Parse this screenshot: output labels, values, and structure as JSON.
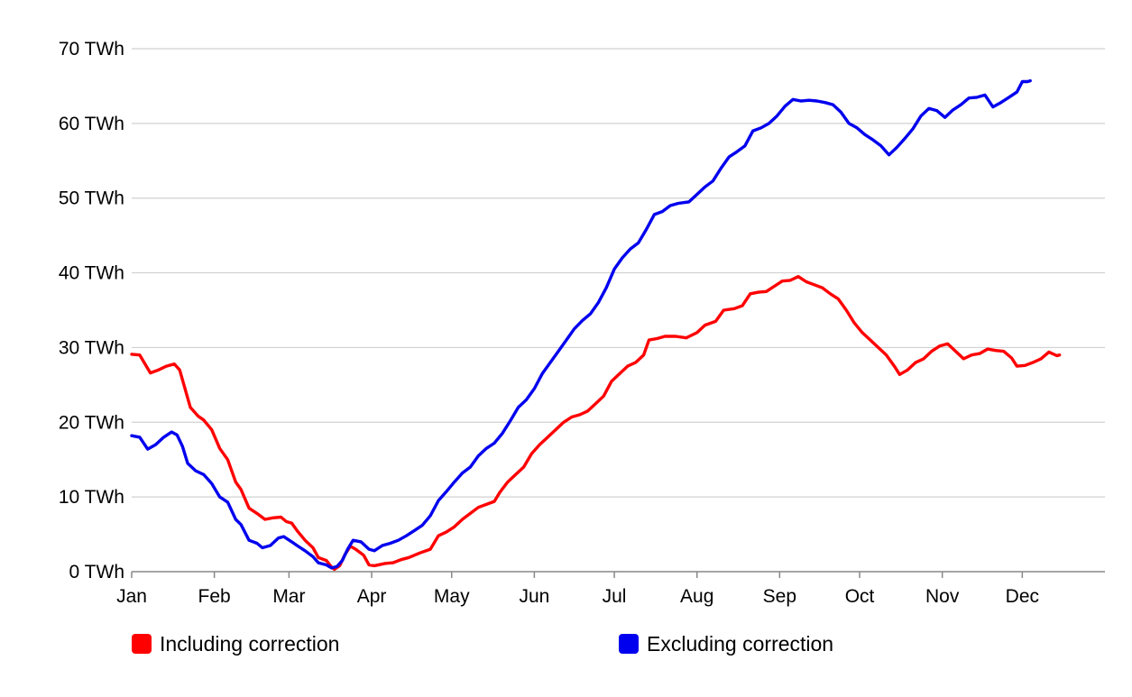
{
  "chart_data": {
    "type": "line",
    "title": "",
    "xlabel": "",
    "ylabel": "",
    "y_unit_suffix": " TWh",
    "ylim": [
      0,
      70
    ],
    "xlim": [
      0,
      365
    ],
    "grid": true,
    "legend_position": "bottom",
    "y_ticks": [
      {
        "value": 0,
        "label": "0 TWh"
      },
      {
        "value": 10,
        "label": "10 TWh"
      },
      {
        "value": 20,
        "label": "20 TWh"
      },
      {
        "value": 30,
        "label": "30 TWh"
      },
      {
        "value": 40,
        "label": "40 TWh"
      },
      {
        "value": 50,
        "label": "50 TWh"
      },
      {
        "value": 60,
        "label": "60 TWh"
      },
      {
        "value": 70,
        "label": "70 TWh"
      }
    ],
    "x_ticks": [
      {
        "day": 0,
        "label": "Jan"
      },
      {
        "day": 31,
        "label": "Feb"
      },
      {
        "day": 59,
        "label": "Mar"
      },
      {
        "day": 90,
        "label": "Apr"
      },
      {
        "day": 120,
        "label": "May"
      },
      {
        "day": 151,
        "label": "Jun"
      },
      {
        "day": 181,
        "label": "Jul"
      },
      {
        "day": 212,
        "label": "Aug"
      },
      {
        "day": 243,
        "label": "Sep"
      },
      {
        "day": 273,
        "label": "Oct"
      },
      {
        "day": 304,
        "label": "Nov"
      },
      {
        "day": 334,
        "label": "Dec"
      }
    ],
    "series": [
      {
        "name": "Including correction",
        "color": "#ff0000",
        "points": [
          [
            0,
            29.1
          ],
          [
            3,
            29.0
          ],
          [
            7,
            26.6
          ],
          [
            10,
            27.0
          ],
          [
            13,
            27.5
          ],
          [
            16,
            27.8
          ],
          [
            18,
            27.0
          ],
          [
            20,
            24.5
          ],
          [
            22,
            22.0
          ],
          [
            25,
            20.8
          ],
          [
            27,
            20.3
          ],
          [
            30,
            19.0
          ],
          [
            33,
            16.5
          ],
          [
            36,
            15.0
          ],
          [
            39,
            12.0
          ],
          [
            41,
            11.0
          ],
          [
            44,
            8.5
          ],
          [
            47,
            7.8
          ],
          [
            50,
            7.0
          ],
          [
            53,
            7.2
          ],
          [
            56,
            7.3
          ],
          [
            58,
            6.7
          ],
          [
            60,
            6.5
          ],
          [
            62,
            5.5
          ],
          [
            65,
            4.2
          ],
          [
            68,
            3.2
          ],
          [
            70,
            1.9
          ],
          [
            73,
            1.5
          ],
          [
            75,
            0.6
          ],
          [
            76,
            0.3
          ],
          [
            78,
            0.8
          ],
          [
            80,
            2.3
          ],
          [
            82,
            3.4
          ],
          [
            84,
            3.0
          ],
          [
            87,
            2.2
          ],
          [
            89,
            0.9
          ],
          [
            91,
            0.8
          ],
          [
            95,
            1.1
          ],
          [
            98,
            1.2
          ],
          [
            101,
            1.6
          ],
          [
            104,
            1.9
          ],
          [
            108,
            2.5
          ],
          [
            112,
            3.0
          ],
          [
            115,
            4.8
          ],
          [
            118,
            5.3
          ],
          [
            121,
            6.0
          ],
          [
            124,
            7.0
          ],
          [
            127,
            7.8
          ],
          [
            130,
            8.6
          ],
          [
            133,
            9.0
          ],
          [
            136,
            9.4
          ],
          [
            138,
            10.6
          ],
          [
            141,
            12.0
          ],
          [
            144,
            13.0
          ],
          [
            147,
            14.0
          ],
          [
            150,
            15.8
          ],
          [
            153,
            17.0
          ],
          [
            156,
            18.0
          ],
          [
            159,
            19.0
          ],
          [
            162,
            20.0
          ],
          [
            165,
            20.7
          ],
          [
            168,
            21.0
          ],
          [
            171,
            21.5
          ],
          [
            174,
            22.5
          ],
          [
            177,
            23.5
          ],
          [
            180,
            25.5
          ],
          [
            183,
            26.5
          ],
          [
            186,
            27.5
          ],
          [
            189,
            28.0
          ],
          [
            192,
            29.0
          ],
          [
            194,
            31.0
          ],
          [
            197,
            31.2
          ],
          [
            200,
            31.5
          ],
          [
            204,
            31.5
          ],
          [
            208,
            31.3
          ],
          [
            212,
            32.0
          ],
          [
            215,
            33.0
          ],
          [
            219,
            33.5
          ],
          [
            222,
            35.0
          ],
          [
            226,
            35.2
          ],
          [
            229,
            35.6
          ],
          [
            232,
            37.2
          ],
          [
            235,
            37.4
          ],
          [
            238,
            37.5
          ],
          [
            241,
            38.2
          ],
          [
            244,
            38.9
          ],
          [
            247,
            39.0
          ],
          [
            250,
            39.5
          ],
          [
            253,
            38.8
          ],
          [
            256,
            38.4
          ],
          [
            259,
            38.0
          ],
          [
            262,
            37.2
          ],
          [
            265,
            36.5
          ],
          [
            268,
            35.0
          ],
          [
            271,
            33.3
          ],
          [
            274,
            32.0
          ],
          [
            277,
            31.0
          ],
          [
            280,
            30.0
          ],
          [
            283,
            29.0
          ],
          [
            286,
            27.5
          ],
          [
            288,
            26.4
          ],
          [
            291,
            27.0
          ],
          [
            294,
            28.0
          ],
          [
            297,
            28.5
          ],
          [
            300,
            29.5
          ],
          [
            303,
            30.2
          ],
          [
            306,
            30.5
          ],
          [
            309,
            29.5
          ],
          [
            312,
            28.5
          ],
          [
            315,
            29.0
          ],
          [
            318,
            29.2
          ],
          [
            321,
            29.8
          ],
          [
            324,
            29.6
          ],
          [
            327,
            29.5
          ],
          [
            330,
            28.6
          ],
          [
            332,
            27.5
          ],
          [
            335,
            27.6
          ],
          [
            338,
            28.0
          ],
          [
            341,
            28.5
          ],
          [
            344,
            29.4
          ],
          [
            347,
            28.9
          ],
          [
            348,
            29.0
          ]
        ]
      },
      {
        "name": "Excluding correction",
        "color": "#0000ee",
        "points": [
          [
            0,
            18.2
          ],
          [
            3,
            18.0
          ],
          [
            6,
            16.4
          ],
          [
            9,
            17.0
          ],
          [
            12,
            18.0
          ],
          [
            15,
            18.7
          ],
          [
            17,
            18.3
          ],
          [
            19,
            16.8
          ],
          [
            21,
            14.5
          ],
          [
            24,
            13.5
          ],
          [
            27,
            13.0
          ],
          [
            30,
            11.8
          ],
          [
            33,
            10.0
          ],
          [
            36,
            9.3
          ],
          [
            39,
            7.0
          ],
          [
            41,
            6.3
          ],
          [
            44,
            4.2
          ],
          [
            47,
            3.8
          ],
          [
            49,
            3.2
          ],
          [
            52,
            3.5
          ],
          [
            55,
            4.5
          ],
          [
            57,
            4.7
          ],
          [
            60,
            4.0
          ],
          [
            62,
            3.5
          ],
          [
            65,
            2.8
          ],
          [
            68,
            2.0
          ],
          [
            70,
            1.2
          ],
          [
            73,
            0.9
          ],
          [
            75,
            0.5
          ],
          [
            77,
            0.7
          ],
          [
            79,
            1.5
          ],
          [
            81,
            3.0
          ],
          [
            83,
            4.2
          ],
          [
            86,
            4.0
          ],
          [
            89,
            3.0
          ],
          [
            91,
            2.8
          ],
          [
            94,
            3.5
          ],
          [
            97,
            3.8
          ],
          [
            100,
            4.2
          ],
          [
            103,
            4.8
          ],
          [
            106,
            5.5
          ],
          [
            109,
            6.2
          ],
          [
            112,
            7.5
          ],
          [
            115,
            9.5
          ],
          [
            118,
            10.7
          ],
          [
            121,
            12.0
          ],
          [
            124,
            13.2
          ],
          [
            127,
            14.0
          ],
          [
            130,
            15.5
          ],
          [
            133,
            16.5
          ],
          [
            136,
            17.2
          ],
          [
            139,
            18.5
          ],
          [
            142,
            20.2
          ],
          [
            145,
            22.0
          ],
          [
            148,
            23.0
          ],
          [
            151,
            24.5
          ],
          [
            154,
            26.5
          ],
          [
            157,
            28.0
          ],
          [
            160,
            29.5
          ],
          [
            163,
            31.0
          ],
          [
            166,
            32.5
          ],
          [
            169,
            33.6
          ],
          [
            172,
            34.5
          ],
          [
            175,
            36.0
          ],
          [
            178,
            38.0
          ],
          [
            181,
            40.5
          ],
          [
            184,
            42.0
          ],
          [
            187,
            43.2
          ],
          [
            190,
            44.0
          ],
          [
            193,
            45.8
          ],
          [
            196,
            47.8
          ],
          [
            199,
            48.2
          ],
          [
            202,
            49.0
          ],
          [
            205,
            49.3
          ],
          [
            209,
            49.5
          ],
          [
            212,
            50.5
          ],
          [
            215,
            51.5
          ],
          [
            218,
            52.3
          ],
          [
            221,
            54.0
          ],
          [
            224,
            55.5
          ],
          [
            227,
            56.2
          ],
          [
            230,
            57.0
          ],
          [
            233,
            59.0
          ],
          [
            236,
            59.4
          ],
          [
            239,
            60.0
          ],
          [
            242,
            61.0
          ],
          [
            245,
            62.3
          ],
          [
            248,
            63.2
          ],
          [
            251,
            63.0
          ],
          [
            254,
            63.1
          ],
          [
            257,
            63.0
          ],
          [
            260,
            62.8
          ],
          [
            263,
            62.5
          ],
          [
            266,
            61.5
          ],
          [
            269,
            60.0
          ],
          [
            272,
            59.4
          ],
          [
            275,
            58.5
          ],
          [
            278,
            57.8
          ],
          [
            281,
            57.0
          ],
          [
            284,
            55.8
          ],
          [
            287,
            56.8
          ],
          [
            290,
            58.0
          ],
          [
            293,
            59.3
          ],
          [
            296,
            61.0
          ],
          [
            299,
            62.0
          ],
          [
            302,
            61.7
          ],
          [
            305,
            60.8
          ],
          [
            308,
            61.8
          ],
          [
            311,
            62.5
          ],
          [
            314,
            63.4
          ],
          [
            317,
            63.5
          ],
          [
            320,
            63.8
          ],
          [
            323,
            62.2
          ],
          [
            326,
            62.8
          ],
          [
            329,
            63.5
          ],
          [
            332,
            64.2
          ],
          [
            334,
            65.6
          ],
          [
            336,
            65.6
          ],
          [
            337,
            65.7
          ]
        ]
      }
    ]
  }
}
